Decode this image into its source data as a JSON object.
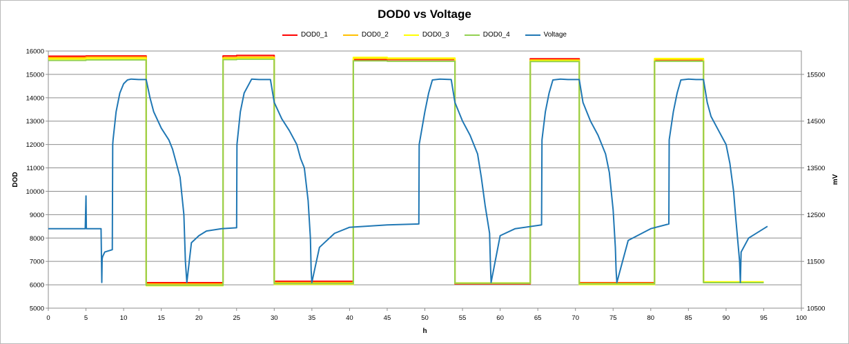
{
  "chart_data": {
    "type": "line",
    "title": "DOD0 vs Voltage",
    "xlabel": "h",
    "ylabel_left": "DOD",
    "ylabel_right": "mV",
    "xlim": [
      0,
      100
    ],
    "ylim_left": [
      5000,
      16000
    ],
    "ylim_right": [
      10500,
      16000
    ],
    "x_ticks": [
      0,
      5,
      10,
      15,
      20,
      25,
      30,
      35,
      40,
      45,
      50,
      55,
      60,
      65,
      70,
      75,
      80,
      85,
      90,
      95,
      100
    ],
    "y_ticks_left": [
      5000,
      6000,
      7000,
      8000,
      9000,
      10000,
      11000,
      12000,
      13000,
      14000,
      15000,
      16000
    ],
    "y_ticks_right": [
      10500,
      11500,
      12500,
      13500,
      14500,
      15500
    ],
    "grid": "horizontal",
    "legend_position": "top",
    "series": [
      {
        "name": "DOD0_1",
        "color": "#ff0000",
        "axis": "left",
        "x": [
          0,
          5,
          5,
          13,
          13,
          23.2,
          23.2,
          25,
          25,
          30,
          30,
          40.5,
          40.5,
          45,
          45,
          54,
          54,
          64,
          64,
          70.5,
          70.5,
          80.5,
          80.5,
          87,
          87,
          95
        ],
        "y": [
          15780,
          15780,
          15790,
          15790,
          6090,
          6090,
          15790,
          15790,
          15810,
          15810,
          6150,
          6150,
          15620,
          15620,
          15630,
          15630,
          6040,
          6040,
          15670,
          15670,
          6090,
          6090,
          15580,
          15580,
          6110,
          6110
        ]
      },
      {
        "name": "DOD0_2",
        "color": "#ffc000",
        "axis": "left",
        "x": [
          0,
          5,
          5,
          13,
          13,
          23.2,
          23.2,
          25,
          25,
          30,
          30,
          40.5,
          40.5,
          45,
          45,
          54,
          54,
          64,
          64,
          70.5,
          70.5,
          80.5,
          80.5,
          87,
          87,
          95
        ],
        "y": [
          15720,
          15720,
          15740,
          15740,
          6040,
          6040,
          15720,
          15720,
          15740,
          15740,
          6100,
          6100,
          15680,
          15680,
          15660,
          15660,
          6060,
          6060,
          15620,
          15620,
          6070,
          6070,
          15640,
          15640,
          6100,
          6100
        ]
      },
      {
        "name": "DOD0_3",
        "color": "#ffff00",
        "axis": "left",
        "x": [
          0,
          5,
          5,
          13,
          13,
          23.2,
          23.2,
          25,
          25,
          30,
          30,
          40.5,
          40.5,
          45,
          45,
          54,
          54,
          64,
          64,
          70.5,
          70.5,
          80.5,
          80.5,
          87,
          87,
          95
        ],
        "y": [
          15660,
          15660,
          15680,
          15680,
          5960,
          5960,
          15670,
          15670,
          15690,
          15690,
          6020,
          6020,
          15730,
          15730,
          15700,
          15700,
          6080,
          6080,
          15580,
          15580,
          6010,
          6010,
          15680,
          15680,
          6130,
          6130
        ]
      },
      {
        "name": "DOD0_4",
        "color": "#92d050",
        "axis": "left",
        "x": [
          0,
          5,
          5,
          13,
          13,
          23.2,
          23.2,
          25,
          25,
          30,
          30,
          40.5,
          40.5,
          45,
          45,
          54,
          54,
          64,
          64,
          70.5,
          70.5,
          80.5,
          80.5,
          87,
          87,
          95
        ],
        "y": [
          15600,
          15600,
          15620,
          15620,
          5980,
          5980,
          15630,
          15630,
          15650,
          15650,
          6050,
          6050,
          15580,
          15580,
          15560,
          15560,
          6070,
          6070,
          15550,
          15550,
          6040,
          6040,
          15560,
          15560,
          6090,
          6090
        ]
      },
      {
        "name": "Voltage",
        "color": "#1f77b4",
        "axis": "right",
        "x": [
          0,
          3,
          4.9,
          5,
          5.05,
          5.2,
          7,
          7.1,
          7.15,
          7.2,
          7.5,
          8.5,
          8.55,
          8.6,
          9,
          9.5,
          10,
          10.5,
          11,
          12,
          13,
          13.5,
          14,
          15,
          16,
          16.5,
          17,
          17.5,
          18,
          18.2,
          18.4,
          19,
          20,
          21,
          23,
          25,
          25.05,
          25.5,
          26,
          27,
          28,
          29.5,
          30,
          31,
          32,
          33,
          33.5,
          34,
          34.5,
          34.8,
          34.9,
          35,
          36,
          38,
          40,
          45,
          49.2,
          49.25,
          50,
          50.5,
          51,
          52,
          53.5,
          54,
          55,
          56,
          57,
          57.5,
          58,
          58.6,
          58.7,
          58.8,
          60,
          62,
          65.5,
          65.55,
          66,
          66.5,
          67,
          68,
          69,
          70.5,
          71,
          72,
          73,
          74,
          74.5,
          75,
          75.3,
          75.4,
          75.5,
          77,
          80,
          82.4,
          82.45,
          83,
          83.5,
          84,
          85,
          86,
          87,
          87.5,
          88,
          89,
          90,
          90.5,
          91,
          91.3,
          91.8,
          91.9,
          92,
          93,
          95.5
        ],
        "y": [
          12200,
          12200,
          12200,
          12900,
          12200,
          12200,
          12200,
          11050,
          11550,
          11600,
          11700,
          11750,
          14000,
          14100,
          14700,
          15100,
          15300,
          15380,
          15400,
          15390,
          15390,
          15000,
          14700,
          14350,
          14100,
          13900,
          13600,
          13300,
          12500,
          11500,
          11050,
          11900,
          12050,
          12150,
          12200,
          12220,
          14000,
          14700,
          15100,
          15400,
          15390,
          15390,
          14900,
          14550,
          14300,
          14000,
          13700,
          13500,
          12800,
          12000,
          11300,
          11050,
          11800,
          12100,
          12230,
          12280,
          12300,
          14000,
          14700,
          15100,
          15380,
          15400,
          15390,
          14900,
          14500,
          14200,
          13800,
          13300,
          12700,
          12100,
          11500,
          11050,
          12050,
          12200,
          12280,
          14100,
          14700,
          15100,
          15380,
          15400,
          15390,
          15390,
          14900,
          14500,
          14200,
          13800,
          13400,
          12600,
          11800,
          11300,
          11050,
          11950,
          12200,
          12300,
          14100,
          14700,
          15100,
          15380,
          15400,
          15390,
          15390,
          14900,
          14600,
          14300,
          14000,
          13600,
          13000,
          12400,
          11500,
          11050,
          11700,
          12000,
          12250
        ]
      }
    ]
  }
}
